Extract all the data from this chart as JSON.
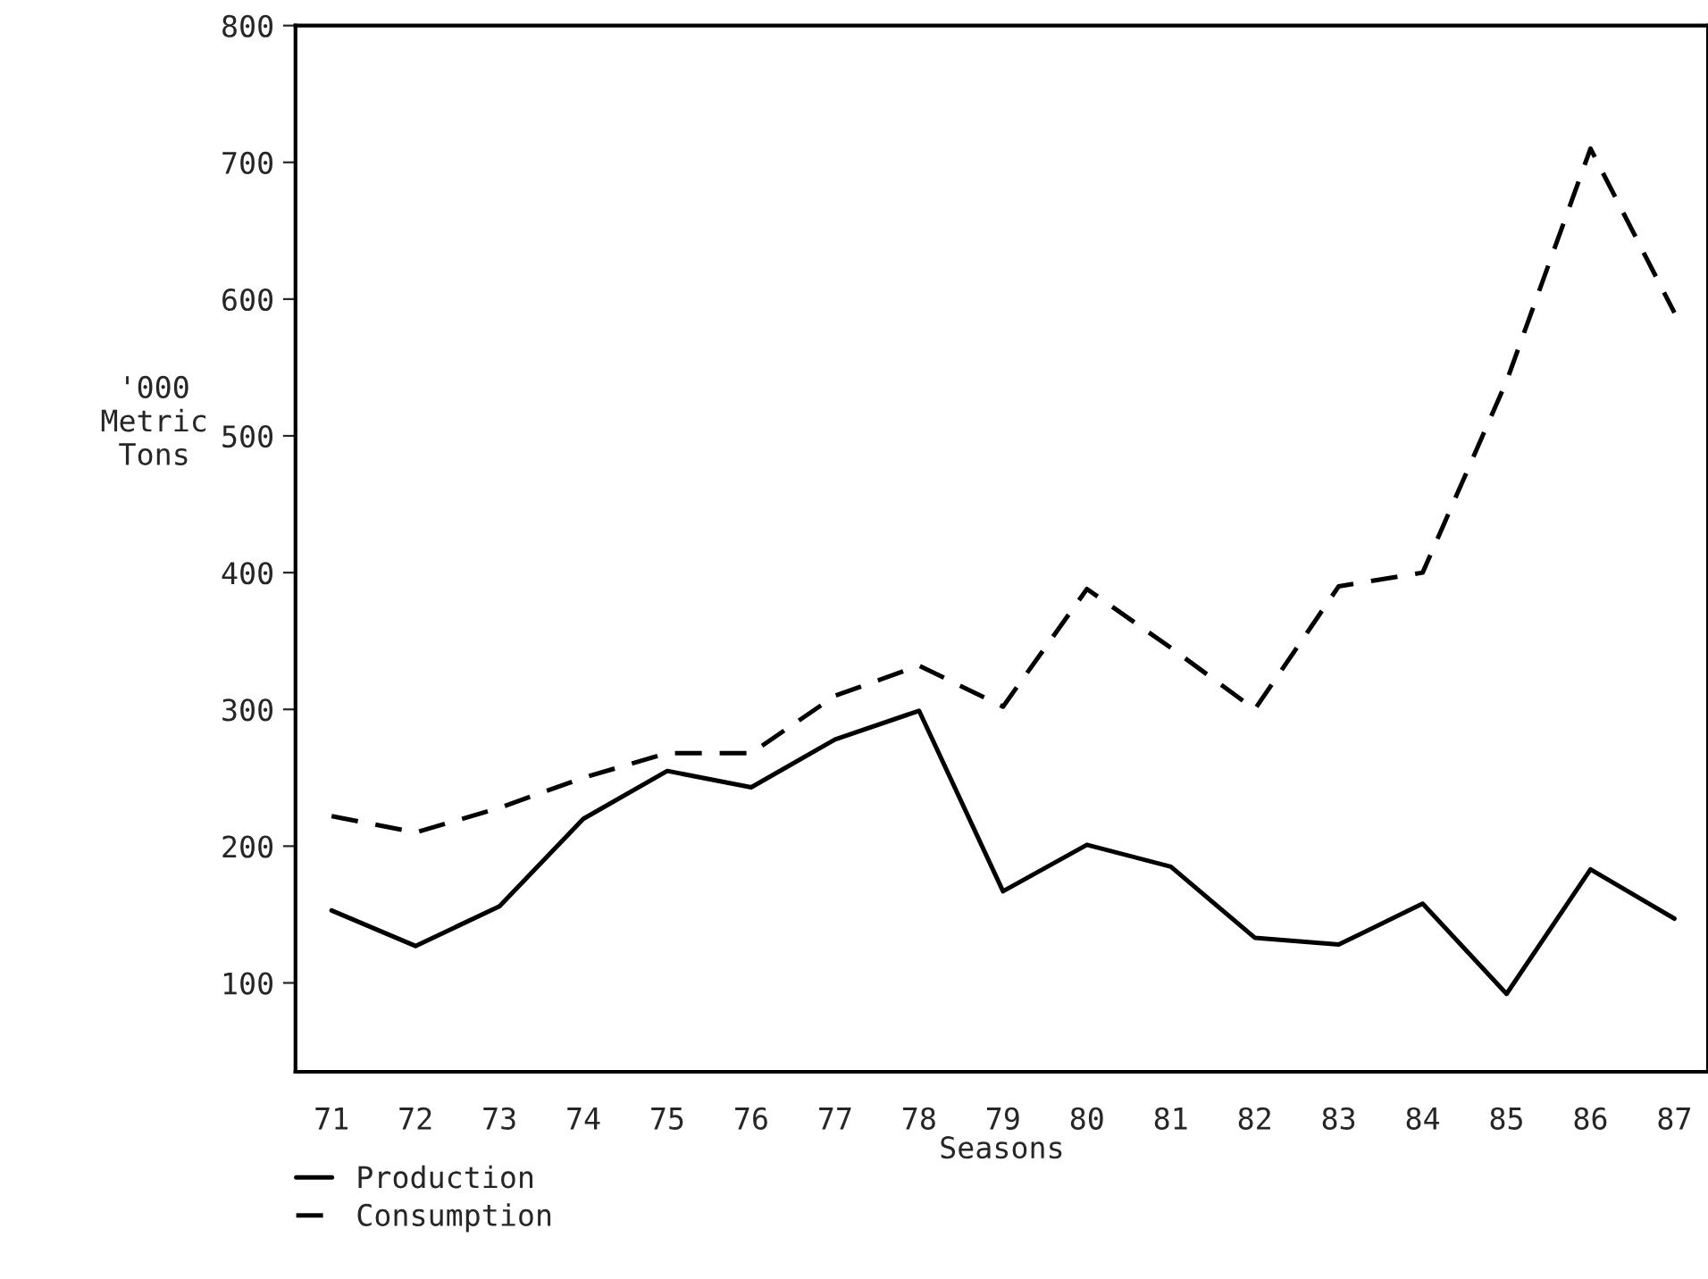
{
  "chart_data": {
    "type": "line",
    "xlabel": "Seasons",
    "ylabel": "'000\nMetric\nTons",
    "categories": [
      "71",
      "72",
      "73",
      "74",
      "75",
      "76",
      "77",
      "78",
      "79",
      "80",
      "81",
      "82",
      "83",
      "84",
      "85",
      "86",
      "87"
    ],
    "series": [
      {
        "name": "Production",
        "color": "#000000",
        "line_style": "solid",
        "values": [
          153,
          127,
          156,
          220,
          255,
          243,
          278,
          299,
          167,
          201,
          185,
          133,
          128,
          158,
          92,
          183,
          147
        ]
      },
      {
        "name": "Consumption",
        "color": "#000000",
        "line_style": "dashed",
        "values": [
          222,
          210,
          228,
          250,
          268,
          268,
          310,
          332,
          302,
          388,
          345,
          300,
          390,
          400,
          540,
          710,
          590
        ]
      }
    ],
    "ylim": [
      35,
      800
    ],
    "yticks": [
      100,
      200,
      300,
      400,
      500,
      600,
      700,
      800
    ],
    "grid": false,
    "legend": "bottom left",
    "marker": "none"
  }
}
